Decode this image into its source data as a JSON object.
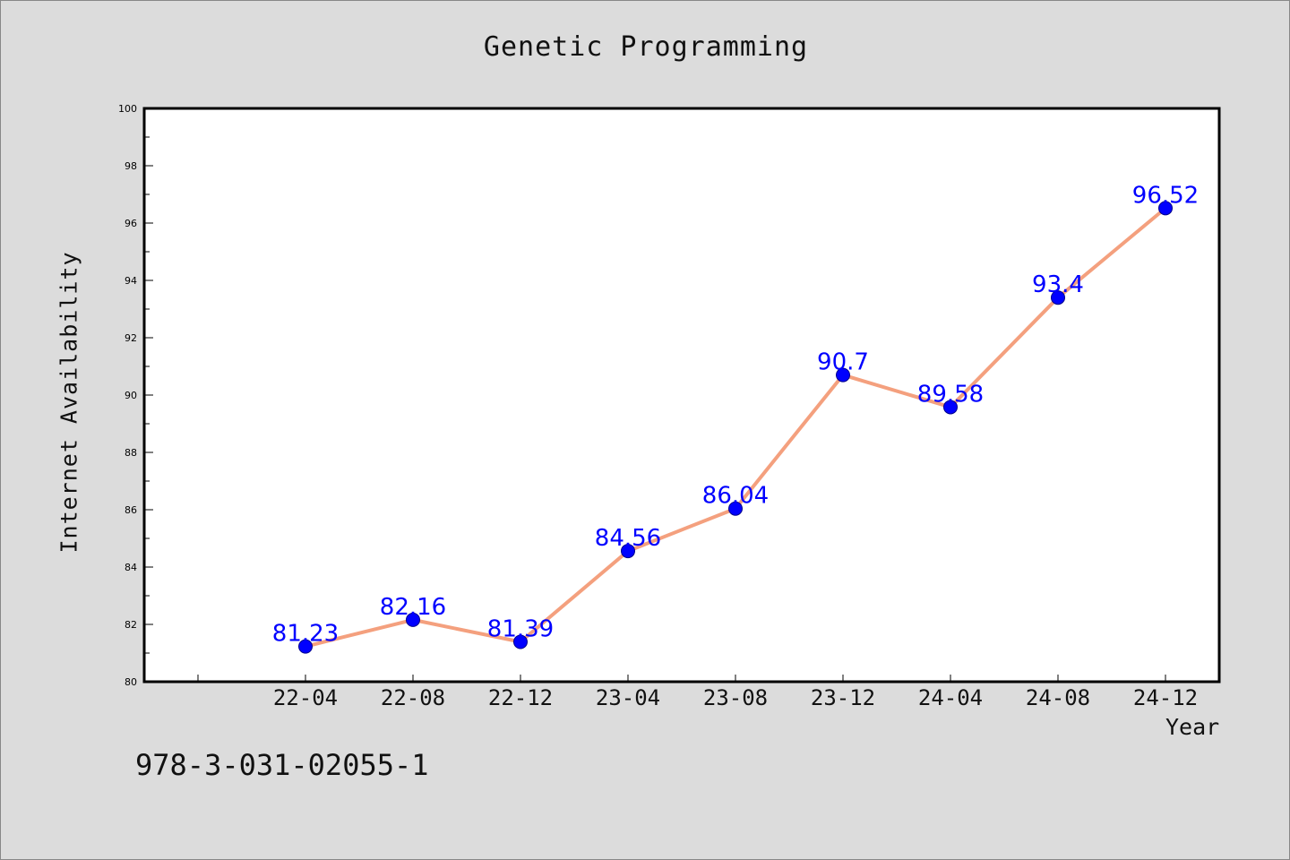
{
  "chart_data": {
    "type": "line",
    "title": "Genetic Programming",
    "xlabel": "Year",
    "ylabel": "Internet Availability",
    "categories": [
      "22-04",
      "22-08",
      "22-12",
      "23-04",
      "23-08",
      "23-12",
      "24-04",
      "24-08",
      "24-12"
    ],
    "values": [
      81.23,
      82.16,
      81.39,
      84.56,
      86.04,
      90.7,
      89.58,
      93.4,
      96.52
    ],
    "data_labels": [
      "81.23",
      "82.16",
      "81.39",
      "84.56",
      "86.04",
      "90.7",
      "89.58",
      "93.4",
      "96.52"
    ],
    "ylim": [
      80,
      100
    ],
    "yticks": [
      "80",
      "82",
      "84",
      "86",
      "88",
      "90",
      "92",
      "94",
      "96",
      "98",
      "100"
    ],
    "grid": false,
    "line_color": "#f4a07e",
    "marker_color": "#0000ff",
    "label_color": "#0000ff",
    "background_color": "#dcdcdc",
    "plot_background": "#ffffff"
  },
  "caption": "978-3-031-02055-1"
}
